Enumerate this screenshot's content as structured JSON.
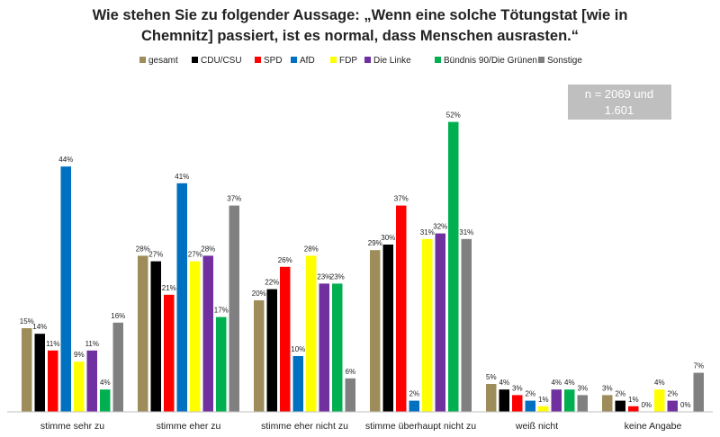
{
  "chart_data": {
    "type": "bar",
    "title": "Wie stehen Sie zu folgender Aussage: „Wenn eine solche Tötungstat [wie in Chemnitz] passiert, ist es normal, dass Menschen ausrasten.“",
    "title_lines": [
      "Wie stehen Sie zu folgender Aussage: „Wenn eine solche Tötungstat [wie in",
      "Chemnitz] passiert, ist es normal, dass Menschen ausrasten.“"
    ],
    "note_lines": [
      "n = 2069 und",
      "1.601"
    ],
    "categories": [
      "stimme sehr zu",
      "stimme eher zu",
      "stimme eher nicht zu",
      "stimme überhaupt nicht zu",
      "weiß nicht",
      "keine Angabe"
    ],
    "ylim": [
      0,
      55
    ],
    "grid": false,
    "legend_position": "top",
    "value_suffix": "%",
    "series": [
      {
        "name": "gesamt",
        "color": "#9E8C5A",
        "values": [
          15,
          28,
          20,
          29,
          5,
          3
        ]
      },
      {
        "name": "CDU/CSU",
        "color": "#000000",
        "values": [
          14,
          27,
          22,
          30,
          4,
          2
        ]
      },
      {
        "name": "SPD",
        "color": "#FF0000",
        "values": [
          11,
          21,
          26,
          37,
          3,
          1
        ]
      },
      {
        "name": "AfD",
        "color": "#0070C0",
        "values": [
          44,
          41,
          10,
          2,
          2,
          0
        ]
      },
      {
        "name": "FDP",
        "color": "#FFFF00",
        "values": [
          9,
          27,
          28,
          31,
          1,
          4
        ]
      },
      {
        "name": "Die Linke",
        "color": "#7030A0",
        "values": [
          11,
          28,
          23,
          32,
          4,
          2
        ]
      },
      {
        "name": "Bündnis 90/Die Grünen",
        "color": "#00B050",
        "values": [
          4,
          17,
          23,
          52,
          4,
          0
        ]
      },
      {
        "name": "Sonstige",
        "color": "#808080",
        "values": [
          16,
          37,
          6,
          31,
          3,
          7
        ]
      }
    ]
  }
}
